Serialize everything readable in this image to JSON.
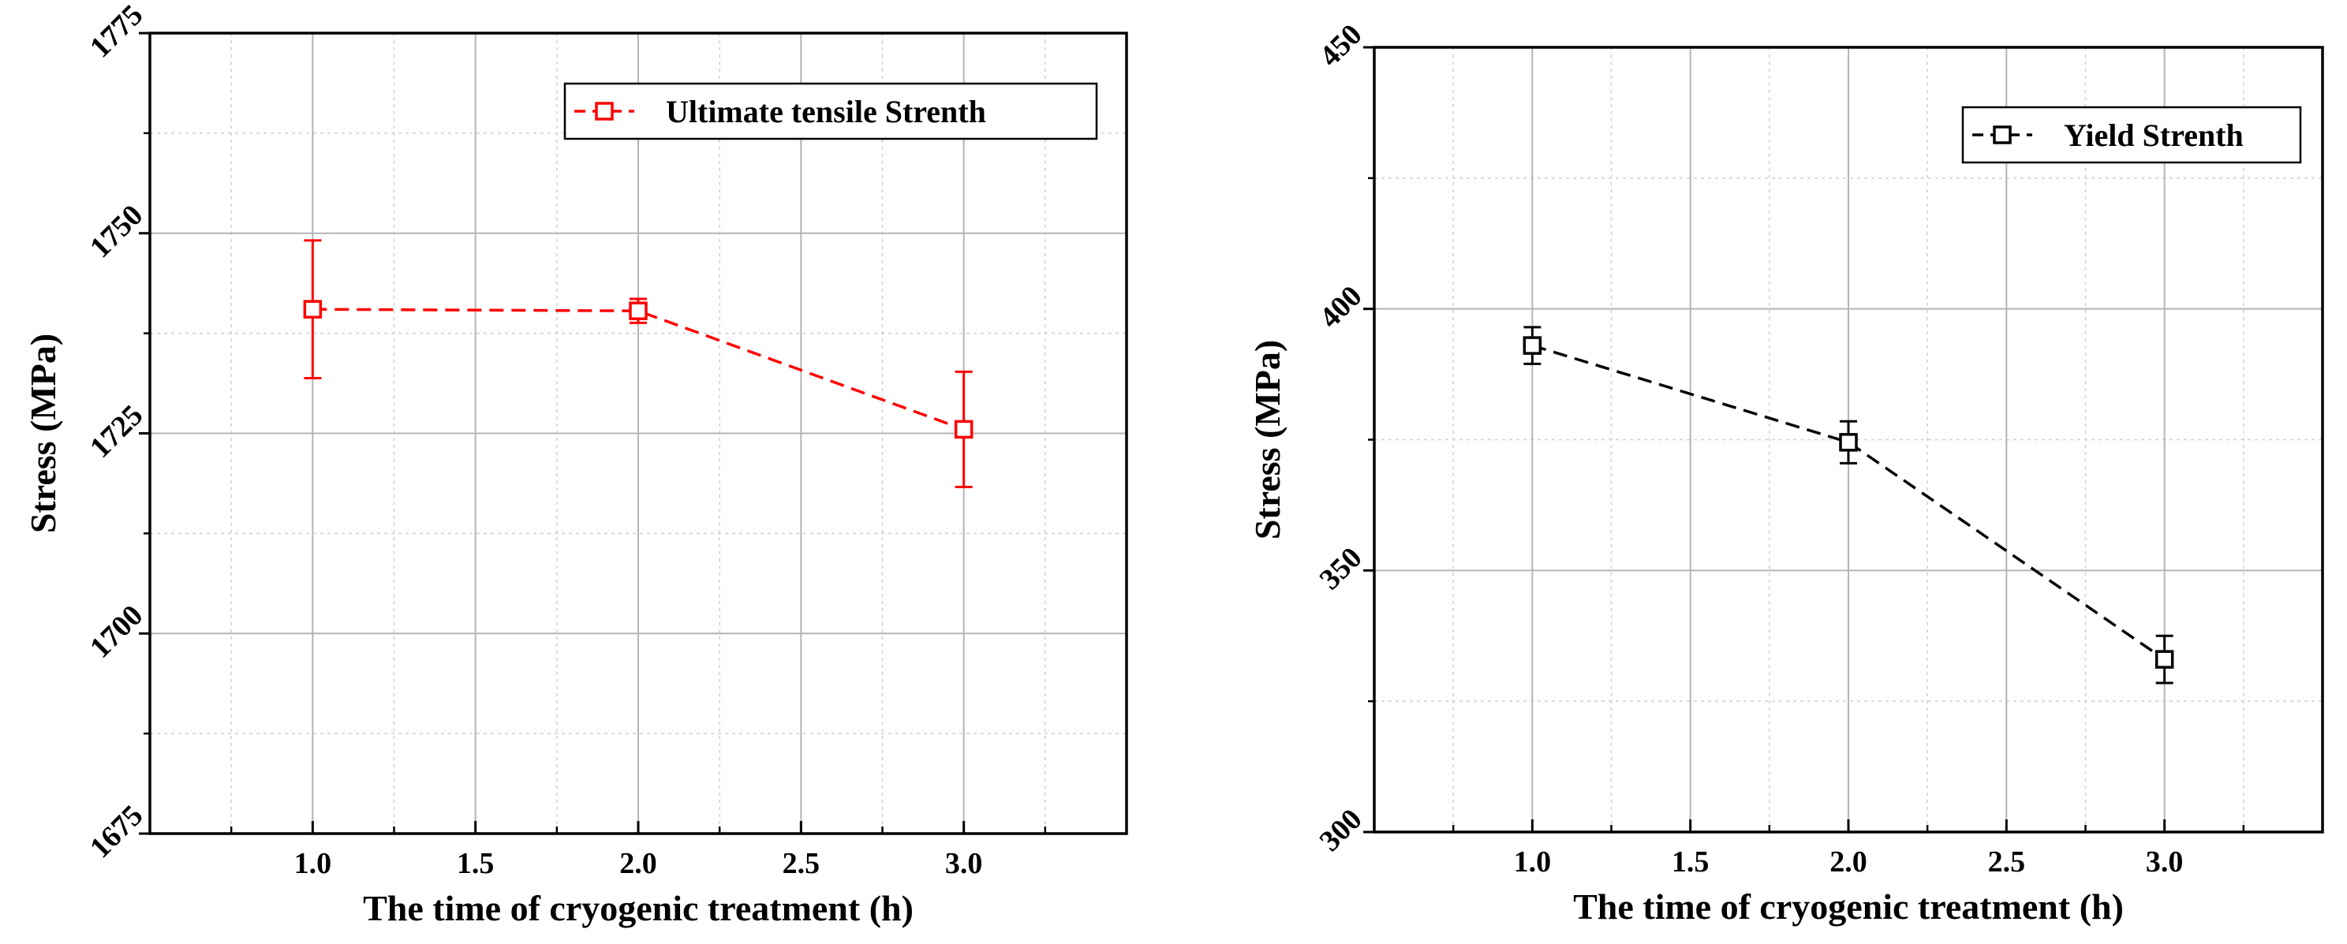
{
  "chart_data": [
    {
      "type": "line",
      "xlabel": "The time of cryogenic treatment (h)",
      "ylabel": "Stress (MPa)",
      "xlim": [
        0.5,
        3.5
      ],
      "ylim": [
        1675,
        1775
      ],
      "xticks": [
        1.0,
        1.5,
        2.0,
        2.5,
        3.0
      ],
      "xtick_labels": [
        "1.0",
        "1.5",
        "2.0",
        "2.5",
        "3.0"
      ],
      "yticks": [
        1675,
        1700,
        1725,
        1750,
        1775
      ],
      "ytick_labels": [
        "1675",
        "1700",
        "1725",
        "1750",
        "1775"
      ],
      "grid": true,
      "legend_position": "top-right",
      "series": [
        {
          "name": "Ultimate tensile Strenth",
          "color": "#ff0000",
          "marker": "open-square",
          "line_style": "dashed",
          "x": [
            1.0,
            2.0,
            3.0
          ],
          "y": [
            1740.5,
            1740.3,
            1725.5
          ],
          "error": [
            8.6,
            1.5,
            7.2
          ]
        }
      ]
    },
    {
      "type": "line",
      "xlabel": "The time of cryogenic treatment (h)",
      "ylabel": "Stress (MPa)",
      "xlim": [
        0.5,
        3.5
      ],
      "ylim": [
        300,
        450
      ],
      "xticks": [
        1.0,
        1.5,
        2.0,
        2.5,
        3.0
      ],
      "xtick_labels": [
        "1.0",
        "1.5",
        "2.0",
        "2.5",
        "3.0"
      ],
      "yticks": [
        300,
        350,
        400,
        450
      ],
      "ytick_labels": [
        "300",
        "350",
        "400",
        "450"
      ],
      "grid": true,
      "legend_position": "top-right",
      "series": [
        {
          "name": "Yield Strenth",
          "color": "#000000",
          "marker": "open-square",
          "line_style": "dashed",
          "x": [
            1.0,
            2.0,
            3.0
          ],
          "y": [
            393,
            374.5,
            333
          ],
          "error": [
            3.5,
            4.0,
            4.5
          ]
        }
      ]
    }
  ]
}
